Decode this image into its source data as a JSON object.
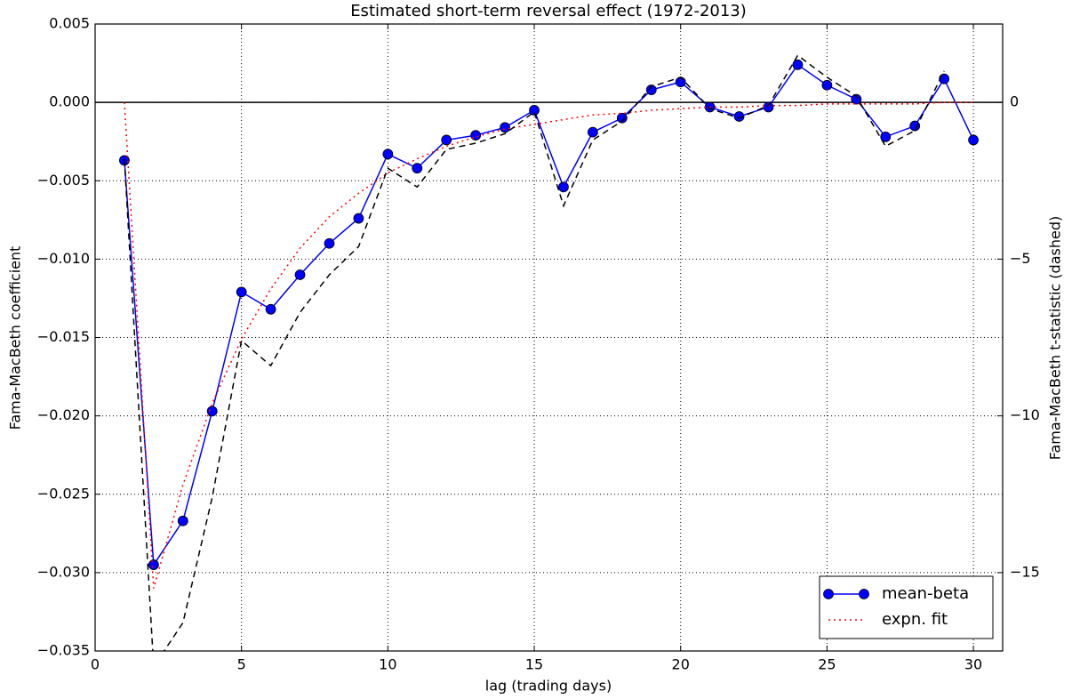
{
  "chart_data": {
    "type": "line",
    "title": "Estimated short-term reversal effect (1972-2013)",
    "x_label": "lag (trading days)",
    "y_label": "Fama-MacBeth coefficient",
    "y2_label": "Fama-MacBeth t-statistic (dashed)",
    "x": [
      1,
      2,
      3,
      4,
      5,
      6,
      7,
      8,
      9,
      10,
      11,
      12,
      13,
      14,
      15,
      16,
      17,
      18,
      19,
      20,
      21,
      22,
      23,
      24,
      25,
      26,
      27,
      28,
      29,
      30
    ],
    "series": [
      {
        "name": "mean-beta",
        "color": "#0000ff",
        "style": "solid",
        "marker": "circle",
        "values": [
          -0.0037,
          -0.0295,
          -0.0267,
          -0.0197,
          -0.0121,
          -0.0132,
          -0.011,
          -0.009,
          -0.0074,
          -0.0033,
          -0.0042,
          -0.0024,
          -0.0021,
          -0.0016,
          -0.0005,
          -0.0054,
          -0.0019,
          -0.001,
          0.0008,
          0.0013,
          -0.0003,
          -0.0009,
          -0.0003,
          0.0024,
          0.0011,
          0.0002,
          -0.0022,
          -0.0015,
          0.0015,
          -0.0024
        ]
      },
      {
        "name": "expn. fit",
        "color": "#ff0000",
        "style": "dotted",
        "values": [
          0,
          -0.031,
          -0.0244,
          -0.0192,
          -0.0151,
          -0.0119,
          -0.0093,
          -0.0073,
          -0.0058,
          -0.0045,
          -0.0036,
          -0.0028,
          -0.0022,
          -0.0017,
          -0.0014,
          -0.0011,
          -0.0008,
          -0.0007,
          -0.0005,
          -0.0004,
          -0.0003,
          -0.0003,
          -0.0002,
          -0.0002,
          -0.0001,
          -0.0001,
          -0.0001,
          -0.0001,
          0,
          0
        ]
      },
      {
        "color": "#000000",
        "style": "dashed",
        "axis": "y2",
        "values": [
          -1.8,
          -18,
          -16.6,
          -12.6,
          -7.6,
          -8.4,
          -6.7,
          -5.5,
          -4.6,
          -2.1,
          -2.7,
          -1.5,
          -1.3,
          -1.0,
          -0.3,
          -3.3,
          -1.2,
          -0.6,
          0.5,
          0.8,
          -0.2,
          -0.5,
          -0.1,
          1.5,
          0.8,
          0.2,
          -1.4,
          -0.9,
          1.0,
          null
        ]
      }
    ],
    "xlim": [
      0,
      31
    ],
    "xticks": [
      0,
      5,
      10,
      15,
      20,
      25,
      30
    ],
    "ylim": [
      -0.035,
      0.005
    ],
    "yticks": [
      {
        "value": -0.035,
        "label": "−0.035"
      },
      {
        "value": -0.03,
        "label": "−0.030"
      },
      {
        "value": -0.025,
        "label": "−0.025"
      },
      {
        "value": -0.02,
        "label": "−0.020"
      },
      {
        "value": -0.015,
        "label": "−0.015"
      },
      {
        "value": -0.01,
        "label": "−0.010"
      },
      {
        "value": -0.005,
        "label": "−0.005"
      },
      {
        "value": 0,
        "label": "0.000"
      },
      0.005
    ],
    "y2lim": [
      -17.5,
      2.5
    ],
    "y2ticks": [
      {
        "value": -15,
        "label": "−15"
      },
      {
        "value": -10,
        "label": "−10"
      },
      {
        "value": -5,
        "label": "−5"
      },
      0
    ],
    "grid": true,
    "legend": "lower right"
  }
}
